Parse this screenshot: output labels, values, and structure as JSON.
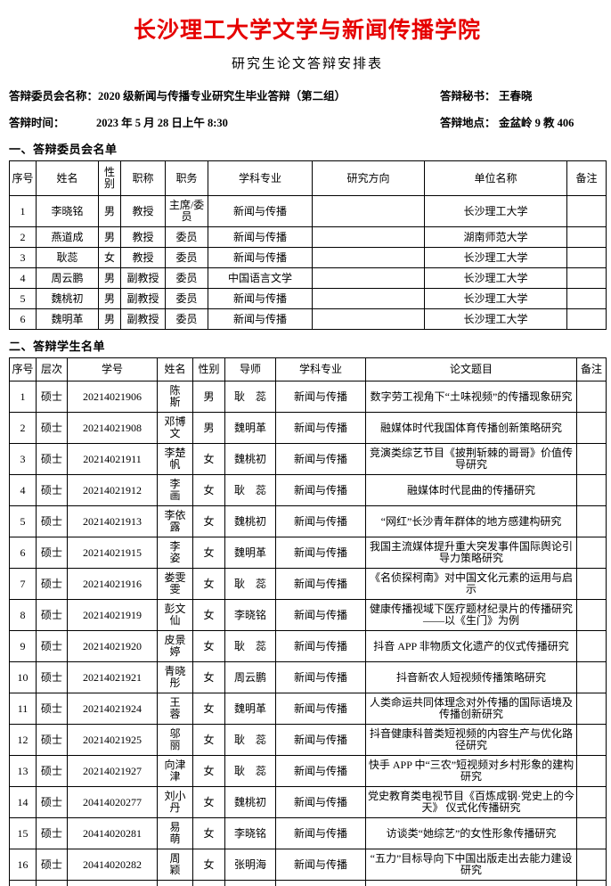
{
  "header": {
    "title": "长沙理工大学文学与新闻传播学院",
    "subtitle": "研究生论文答辩安排表",
    "info": {
      "committee_label": "答辩委员会名称：",
      "committee_value": "2020 级新闻与传播专业研究生毕业答辩（第二组）",
      "secretary_label": "答辩秘书：",
      "secretary_value": "王春晓",
      "time_label": "答辩时间：",
      "time_value": "2023 年 5 月 28 日上午 8:30",
      "location_label": "答辩地点：",
      "location_value": "金盆岭 9 教 406"
    }
  },
  "colors": {
    "title_red": "#e60000",
    "text": "#000000",
    "border": "#000000",
    "background": "#ffffff"
  },
  "committee_section": {
    "heading": "一、答辩委员会名单",
    "columns": [
      "序号",
      "姓名",
      "性别",
      "职称",
      "职务",
      "学科专业",
      "研究方向",
      "单位名称",
      "备注"
    ],
    "rows": [
      [
        "1",
        "李晓铭",
        "男",
        "教授",
        "主席/委员",
        "新闻与传播",
        "",
        "长沙理工大学",
        ""
      ],
      [
        "2",
        "燕道成",
        "男",
        "教授",
        "委员",
        "新闻与传播",
        "",
        "湖南师范大学",
        ""
      ],
      [
        "3",
        "耿蕊",
        "女",
        "教授",
        "委员",
        "新闻与传播",
        "",
        "长沙理工大学",
        ""
      ],
      [
        "4",
        "周云鹏",
        "男",
        "副教授",
        "委员",
        "中国语言文学",
        "",
        "长沙理工大学",
        ""
      ],
      [
        "5",
        "魏桃初",
        "男",
        "副教授",
        "委员",
        "新闻与传播",
        "",
        "长沙理工大学",
        ""
      ],
      [
        "6",
        "魏明革",
        "男",
        "副教授",
        "委员",
        "新闻与传播",
        "",
        "长沙理工大学",
        ""
      ]
    ]
  },
  "student_section": {
    "heading": "二、答辩学生名单",
    "columns": [
      "序号",
      "层次",
      "学号",
      "姓名",
      "性别",
      "导师",
      "学科专业",
      "论文题目",
      "备注"
    ],
    "rows": [
      [
        "1",
        "硕士",
        "20214021906",
        "陈　斯",
        "男",
        "耿　蕊",
        "新闻与传播",
        "数字劳工视角下“土味视频”的传播现象研究",
        ""
      ],
      [
        "2",
        "硕士",
        "20214021908",
        "邓博文",
        "男",
        "魏明革",
        "新闻与传播",
        "融媒体时代我国体育传播创新策略研究",
        ""
      ],
      [
        "3",
        "硕士",
        "20214021911",
        "李楚帆",
        "女",
        "魏桃初",
        "新闻与传播",
        "竞演类综艺节目《披荆斩棘的哥哥》价值传导研究",
        ""
      ],
      [
        "4",
        "硕士",
        "20214021912",
        "李　画",
        "女",
        "耿　蕊",
        "新闻与传播",
        "融媒体时代昆曲的传播研究",
        ""
      ],
      [
        "5",
        "硕士",
        "20214021913",
        "李依露",
        "女",
        "魏桃初",
        "新闻与传播",
        "“网红”长沙青年群体的地方感建构研究",
        ""
      ],
      [
        "6",
        "硕士",
        "20214021915",
        "李　姿",
        "女",
        "魏明革",
        "新闻与传播",
        "我国主流媒体提升重大突发事件国际舆论引导力策略研究",
        ""
      ],
      [
        "7",
        "硕士",
        "20214021916",
        "娄雯雯",
        "女",
        "耿　蕊",
        "新闻与传播",
        "《名侦探柯南》对中国文化元素的运用与启示",
        ""
      ],
      [
        "8",
        "硕士",
        "20214021919",
        "彭文仙",
        "女",
        "李晓铭",
        "新闻与传播",
        "健康传播视域下医疗题材纪录片的传播研究——以《生门》为例",
        ""
      ],
      [
        "9",
        "硕士",
        "20214021920",
        "皮景婷",
        "女",
        "耿　蕊",
        "新闻与传播",
        "抖音 APP 非物质文化遗产的仪式传播研究",
        ""
      ],
      [
        "10",
        "硕士",
        "20214021921",
        "青晓彤",
        "女",
        "周云鹏",
        "新闻与传播",
        "抖音新农人短视频传播策略研究",
        ""
      ],
      [
        "11",
        "硕士",
        "20214021924",
        "王　蓉",
        "女",
        "魏明革",
        "新闻与传播",
        "人类命运共同体理念对外传播的国际语境及传播创新研究",
        ""
      ],
      [
        "12",
        "硕士",
        "20214021925",
        "邬　丽",
        "女",
        "耿　蕊",
        "新闻与传播",
        "抖音健康科普类短视频的内容生产与优化路径研究",
        ""
      ],
      [
        "13",
        "硕士",
        "20214021927",
        "向津津",
        "女",
        "耿　蕊",
        "新闻与传播",
        "快手 APP 中“三农”短视频对乡村形象的建构研究",
        ""
      ],
      [
        "14",
        "硕士",
        "20414020277",
        "刘小丹",
        "女",
        "魏桃初",
        "新闻与传播",
        "党史教育类电视节目《百炼成钢·党史上的今天》 仪式化传播研究",
        ""
      ],
      [
        "15",
        "硕士",
        "20414020281",
        "易　萌",
        "女",
        "李晓铭",
        "新闻与传播",
        "访谈类“她综艺”的女性形象传播研究",
        ""
      ],
      [
        "16",
        "硕士",
        "20414020282",
        "周　颖",
        "女",
        "张明海",
        "新闻与传播",
        "“五力”目标导向下中国出版走出去能力建设研究",
        ""
      ]
    ]
  }
}
